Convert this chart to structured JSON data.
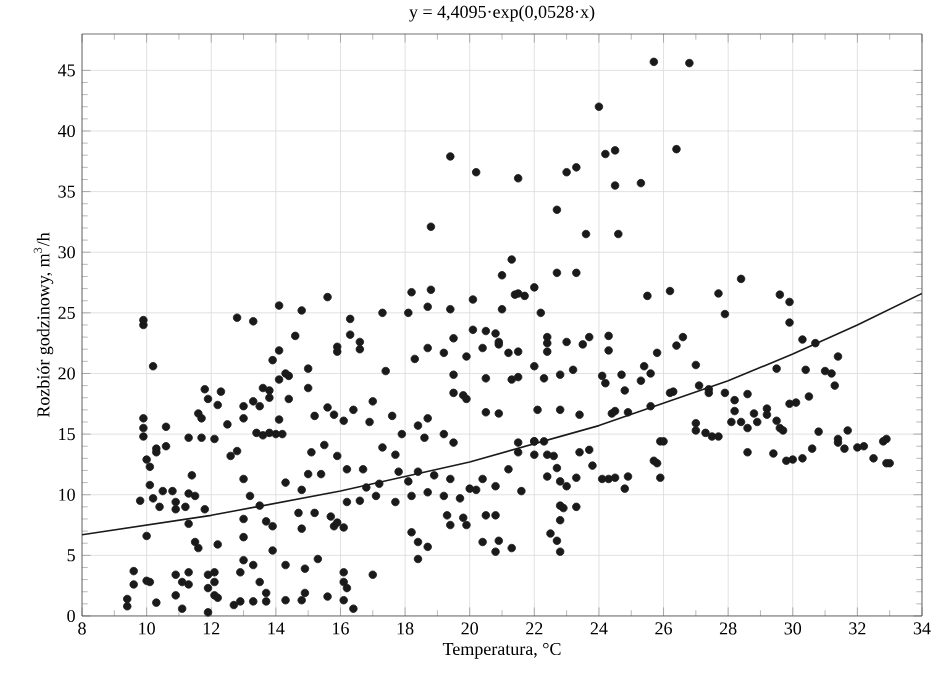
{
  "chart_data": {
    "type": "scatter",
    "title": "y = 4,4095·exp(0,0528·x)",
    "xlabel": "Temperatura, °C",
    "ylabel": "Rozbiór godzinowy, m$^{3}$/h",
    "xlim": [
      8,
      34
    ],
    "ylim": [
      0,
      48
    ],
    "xticks": [
      8,
      10,
      12,
      14,
      16,
      18,
      20,
      22,
      24,
      26,
      28,
      30,
      32,
      34
    ],
    "yticks": [
      0,
      5,
      10,
      15,
      20,
      25,
      30,
      35,
      40,
      45
    ],
    "grid": true,
    "marker": "circle",
    "series": [
      {
        "color": "#1a1a1a",
        "x": [
          25.7,
          26.8,
          24.0,
          19.4,
          20.2,
          21.5,
          23.0,
          23.3,
          24.2,
          24.5,
          26.4,
          24.5,
          25.3,
          22.7,
          18.8,
          23.6,
          24.6,
          9.9,
          9.9,
          10.2,
          12.8,
          13.3,
          14.1,
          14.8,
          15.6,
          16.3,
          17.3,
          18.2,
          18.8,
          18.1,
          18.7,
          19.4,
          20.1,
          21.0,
          21.3,
          21.4,
          21.0,
          14.6,
          14.1,
          13.9,
          15.9,
          15.9,
          16.3,
          16.6,
          16.6,
          17.4,
          18.3,
          18.7,
          19.2,
          19.5,
          19.5,
          19.9,
          20.1,
          20.5,
          20.4,
          20.8,
          20.9,
          21.2,
          20.5,
          21.3,
          19.5,
          19.8,
          19.9,
          20.5,
          20.9,
          14.1,
          14.3,
          14.4,
          15.0,
          15.0,
          14.4,
          13.6,
          13.8,
          13.8,
          13.3,
          13.0,
          13.5,
          12.3,
          11.8,
          11.9,
          12.2,
          11.6,
          11.7,
          13.0,
          14.1,
          12.5,
          15.2,
          15.6,
          15.8,
          16.1,
          16.4,
          16.9,
          17.0,
          17.6,
          17.9,
          18.4,
          18.7,
          18.6,
          19.2,
          19.5,
          9.9,
          9.9,
          9.9,
          10.6,
          10.3,
          11.3,
          11.7,
          12.1,
          12.8,
          13.4,
          13.6,
          13.8,
          14.0,
          14.2,
          22.7,
          23.3,
          22.0,
          21.5,
          21.7,
          22.2,
          25.5,
          26.2,
          27.7,
          28.4,
          27.9,
          29.6,
          29.9,
          29.9,
          30.3,
          30.7,
          31.4,
          29.5,
          30.4,
          31.0,
          31.2,
          31.3,
          30.5,
          30.1,
          29.9,
          20.9,
          21.5,
          21.5,
          22.3,
          22.0,
          22.8,
          23.2,
          22.4,
          22.4,
          22.4,
          23.0,
          23.5,
          23.7,
          24.3,
          24.3,
          24.1,
          24.2,
          24.7,
          24.8,
          25.3,
          25.6,
          25.4,
          25.8,
          26.4,
          26.6,
          27.0,
          26.2,
          26.3,
          27.1,
          27.4,
          27.4,
          27.9,
          28.2,
          28.6,
          28.2,
          28.1,
          28.4,
          28.8,
          29.2,
          29.2,
          28.9,
          28.6,
          29.5,
          29.6,
          29.7,
          27.0,
          27.0,
          27.5,
          30.8,
          31.7,
          31.4,
          32.8,
          32.0,
          22.1,
          22.8,
          23.4,
          24.5,
          24.4,
          24.9,
          25.6,
          25.9,
          21.5,
          22.0,
          22.3,
          23.7,
          22.0,
          21.5,
          22.0,
          22.4,
          22.6,
          23.4,
          23.8,
          22.7,
          22.4,
          22.8,
          23.0,
          23.3,
          22.8,
          22.9,
          23.3,
          22.8,
          22.5,
          22.7,
          22.8,
          21.6,
          21.2,
          20.8,
          20.8,
          20.9,
          21.3,
          24.1,
          24.3,
          24.5,
          24.8,
          24.9,
          25.7,
          25.8,
          25.9,
          26.0,
          27.3,
          27.7,
          28.6,
          29.4,
          29.8,
          30.0,
          30.3,
          30.6,
          31.4,
          31.6,
          32.2,
          32.5,
          32.9,
          33.0,
          32.9,
          10.0,
          10.1,
          10.3,
          10.6,
          10.5,
          10.4,
          10.8,
          10.9,
          10.9,
          11.2,
          11.3,
          11.5,
          11.4,
          11.8,
          11.3,
          9.8,
          10.0,
          11.5,
          11.6,
          12.2,
          12.6,
          13.0,
          13.2,
          13.5,
          13.0,
          13.0,
          13.7,
          13.9,
          13.9,
          14.3,
          14.7,
          14.8,
          15.0,
          15.2,
          15.4,
          15.1,
          15.7,
          15.8,
          15.5,
          15.9,
          16.2,
          16.7,
          16.2,
          16.6,
          16.8,
          17.1,
          17.2,
          15.9,
          16.1,
          14.8,
          14.3,
          15.3,
          14.9,
          17.0,
          16.1,
          16.1,
          16.2,
          16.4,
          16.1,
          15.6,
          14.8,
          14.9,
          14.3,
          13.7,
          13.7,
          13.5,
          12.9,
          13.0,
          13.3,
          13.3,
          12.9,
          12.7,
          11.9,
          12.1,
          11.9,
          11.9,
          12.1,
          12.1,
          12.2,
          10.9,
          11.1,
          11.1,
          10.9,
          11.3,
          11.3,
          10.3,
          10.1,
          10.0,
          9.6,
          9.6,
          9.4,
          9.4,
          10.1,
          10.2,
          17.3,
          17.7,
          17.8,
          18.1,
          18.4,
          18.2,
          18.7,
          18.9,
          19.2,
          19.4,
          19.7,
          20.0,
          20.2,
          20.4,
          18.2,
          18.4,
          18.4,
          18.7,
          19.3,
          19.4,
          19.8,
          19.9,
          17.7,
          20.5,
          20.4,
          20.8
        ],
        "values": [
          45.7,
          45.6,
          42.0,
          37.9,
          36.6,
          36.1,
          36.6,
          37.0,
          38.1,
          38.4,
          38.5,
          35.5,
          35.7,
          33.5,
          32.1,
          31.5,
          31.5,
          24.0,
          24.4,
          20.6,
          24.6,
          24.3,
          25.6,
          25.2,
          26.3,
          24.5,
          25.0,
          26.7,
          26.9,
          25.0,
          25.5,
          25.3,
          26.1,
          28.1,
          29.4,
          26.5,
          25.3,
          23.1,
          21.9,
          21.1,
          22.2,
          21.8,
          23.2,
          22.6,
          22.0,
          20.2,
          21.2,
          22.1,
          21.7,
          22.9,
          19.9,
          21.4,
          23.6,
          23.5,
          22.1,
          23.3,
          22.4,
          21.7,
          19.6,
          19.5,
          18.4,
          18.2,
          17.9,
          16.8,
          16.7,
          19.5,
          20.0,
          19.8,
          20.4,
          18.8,
          17.9,
          18.8,
          18.6,
          18.0,
          17.7,
          17.3,
          17.3,
          18.5,
          18.7,
          17.9,
          17.4,
          16.7,
          16.3,
          16.3,
          16.2,
          15.8,
          16.5,
          17.2,
          16.6,
          16.1,
          17.0,
          16.0,
          17.7,
          16.5,
          15.0,
          15.7,
          16.3,
          14.7,
          15.0,
          14.3,
          16.3,
          15.5,
          14.8,
          15.6,
          13.8,
          14.7,
          14.7,
          14.6,
          13.6,
          15.1,
          14.9,
          15.1,
          15.0,
          15.0,
          28.3,
          28.3,
          27.1,
          26.6,
          26.4,
          25.0,
          26.4,
          26.8,
          26.6,
          27.8,
          24.9,
          26.5,
          25.9,
          24.2,
          22.8,
          22.5,
          21.4,
          20.4,
          20.3,
          20.2,
          20.0,
          19.0,
          18.1,
          17.6,
          17.5,
          22.6,
          21.8,
          19.7,
          19.6,
          20.6,
          19.9,
          20.3,
          23.0,
          22.5,
          21.8,
          22.6,
          22.4,
          23.0,
          23.1,
          21.9,
          19.8,
          19.2,
          19.9,
          18.6,
          19.4,
          20.0,
          20.6,
          21.7,
          22.3,
          23.0,
          20.7,
          18.4,
          18.5,
          19.0,
          18.7,
          18.4,
          18.4,
          17.8,
          18.3,
          16.9,
          16.0,
          16.0,
          16.7,
          17.1,
          16.6,
          16.0,
          15.5,
          16.1,
          15.5,
          15.3,
          15.9,
          15.3,
          14.8,
          15.2,
          15.3,
          14.3,
          14.4,
          13.9,
          17.0,
          17.0,
          16.6,
          16.9,
          16.7,
          16.8,
          17.3,
          14.4,
          14.3,
          14.4,
          14.4,
          13.7,
          14.4,
          13.5,
          13.3,
          13.3,
          13.2,
          13.5,
          12.4,
          12.2,
          11.5,
          11.1,
          10.7,
          11.4,
          9.1,
          8.9,
          9.0,
          7.9,
          6.8,
          6.2,
          5.3,
          10.3,
          12.1,
          10.7,
          8.3,
          6.2,
          5.6,
          11.3,
          11.3,
          11.4,
          10.5,
          11.5,
          12.8,
          12.6,
          11.4,
          14.4,
          15.1,
          14.8,
          13.5,
          13.4,
          12.8,
          12.9,
          13.0,
          13.8,
          14.6,
          13.8,
          14.0,
          13.0,
          12.6,
          12.6,
          14.6,
          12.9,
          12.3,
          13.5,
          14.0,
          10.3,
          9.0,
          10.3,
          9.4,
          8.8,
          9.0,
          10.1,
          9.9,
          11.6,
          8.8,
          7.6,
          9.5,
          6.6,
          6.1,
          5.6,
          5.9,
          13.2,
          11.3,
          9.9,
          9.1,
          8.0,
          6.5,
          7.8,
          7.4,
          5.4,
          11.0,
          8.5,
          10.4,
          11.7,
          8.5,
          11.7,
          13.5,
          8.2,
          7.4,
          14.1,
          13.2,
          12.1,
          12.1,
          9.4,
          9.5,
          10.6,
          9.9,
          10.9,
          7.7,
          7.3,
          7.2,
          4.2,
          4.7,
          3.9,
          3.4,
          3.6,
          2.8,
          2.3,
          0.6,
          1.3,
          1.6,
          1.3,
          1.9,
          1.3,
          1.9,
          1.2,
          2.8,
          3.6,
          4.6,
          4.2,
          1.2,
          1.2,
          0.9,
          0.3,
          1.7,
          2.3,
          3.4,
          3.6,
          2.8,
          1.5,
          1.7,
          0.6,
          2.8,
          3.4,
          2.6,
          3.6,
          1.1,
          2.8,
          2.9,
          2.6,
          3.7,
          1.4,
          0.8,
          10.8,
          9.7,
          13.9,
          13.3,
          11.9,
          11.1,
          11.9,
          9.9,
          10.2,
          11.6,
          9.9,
          11.3,
          9.7,
          10.5,
          10.4,
          11.3,
          6.9,
          6.1,
          4.7,
          5.7,
          8.3,
          7.5,
          8.1,
          7.5,
          9.4,
          8.3,
          6.1,
          5.3
        ]
      },
      {
        "type": "line",
        "color": "#1a1a1a",
        "marker": "none",
        "x": [
          8,
          12,
          16,
          20,
          24,
          28,
          30,
          32,
          34
        ],
        "values": [
          6.7,
          8.3,
          10.3,
          12.7,
          15.7,
          19.4,
          21.6,
          24.0,
          26.6
        ]
      }
    ]
  }
}
